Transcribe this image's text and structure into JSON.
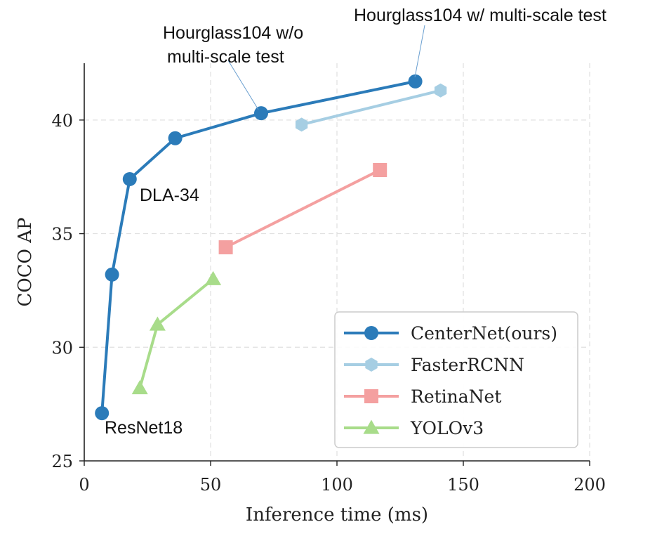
{
  "chart_data": {
    "type": "line",
    "title": "",
    "xlabel": "Inference time (ms)",
    "ylabel": "COCO AP",
    "xlim": [
      0,
      200
    ],
    "ylim": [
      25,
      42.5
    ],
    "xticks": [
      0,
      50,
      100,
      150,
      200
    ],
    "yticks": [
      25,
      30,
      35,
      40
    ],
    "grid": true,
    "legend_position": "bottom-right",
    "series": [
      {
        "name": "CenterNet(ours)",
        "color": "#2b7bb9",
        "marker": "circle",
        "x": [
          7,
          11,
          18,
          36,
          70,
          131
        ],
        "y": [
          27.1,
          33.2,
          37.4,
          39.2,
          40.3,
          41.7
        ]
      },
      {
        "name": "FasterRCNN",
        "color": "#a6cee3",
        "marker": "hexagon",
        "x": [
          86,
          141
        ],
        "y": [
          39.8,
          41.3
        ]
      },
      {
        "name": "RetinaNet",
        "color": "#f4a0a0",
        "marker": "square",
        "x": [
          56,
          117
        ],
        "y": [
          34.4,
          37.8
        ]
      },
      {
        "name": "YOLOv3",
        "color": "#a8dc8a",
        "marker": "triangle",
        "x": [
          22,
          29,
          51
        ],
        "y": [
          28.2,
          31.0,
          33.0
        ]
      }
    ],
    "annotations": [
      {
        "text": "Hourglass104 w/ multi-scale test",
        "series": 0,
        "point": 5
      },
      {
        "text": "Hourglass104 w/o",
        "series": 0,
        "point": 4
      },
      {
        "text": "multi-scale test",
        "series": 0,
        "point": 4
      },
      {
        "text": "DLA-34",
        "series": 0,
        "point": 2
      },
      {
        "text": "ResNet18",
        "series": 0,
        "point": 0
      }
    ]
  }
}
